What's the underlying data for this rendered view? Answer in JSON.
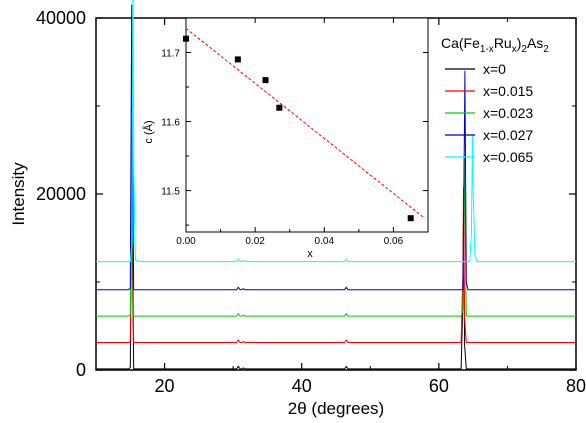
{
  "chart_data": [
    {
      "type": "line",
      "xlabel": "2θ (degrees)",
      "ylabel": "Intensity",
      "xlim": [
        10,
        80
      ],
      "ylim": [
        0,
        40000
      ],
      "xticks": [
        "20",
        "40",
        "60",
        "80"
      ],
      "yticks": [
        "0",
        "20000",
        "40000"
      ],
      "legend_title_parts": {
        "prefix": "Ca(Fe",
        "sub1": "1-x",
        "mid": "Ru",
        "sub2": "x",
        "close": ")",
        "sub3": "2",
        "suffix": "As",
        "sub4": "2"
      },
      "legend_position": "top-right",
      "series": [
        {
          "name": "x=0",
          "color": "#000000",
          "offset": 0,
          "peak1_x": 15.2,
          "peak1_h": 22500,
          "peak2_x": 63.6,
          "peak2_h": 17500
        },
        {
          "name": "x=0.015",
          "color": "#ff0000",
          "offset": 3000,
          "peak1_x": 15.2,
          "peak1_h": 22000,
          "peak2_x": 63.6,
          "peak2_h": 17800
        },
        {
          "name": "x=0.023",
          "color": "#00cc00",
          "offset": 6000,
          "peak1_x": 15.2,
          "peak1_h": 22500,
          "peak2_x": 63.7,
          "peak2_h": 18500
        },
        {
          "name": "x=0.027",
          "color": "#0000cc",
          "offset": 9000,
          "peak1_x": 15.2,
          "peak1_h": 32500,
          "peak2_x": 63.8,
          "peak2_h": 25000
        },
        {
          "name": "x=0.065",
          "color": "#00ffff",
          "offset": 12200,
          "peak1_x": 15.4,
          "peak1_h": 35300,
          "peak2_x": 64.9,
          "peak2_h": 14500
        }
      ]
    },
    {
      "type": "scatter",
      "xlabel": "x",
      "ylabel": "c (Å)",
      "xlim": [
        0,
        0.07
      ],
      "ylim": [
        11.44,
        11.75
      ],
      "xticks": [
        "0.00",
        "0.02",
        "0.04",
        "0.06"
      ],
      "yticks": [
        "11.5",
        "11.6",
        "11.7"
      ],
      "points": [
        {
          "x": 0.0,
          "y": 11.72
        },
        {
          "x": 0.015,
          "y": 11.69
        },
        {
          "x": 0.023,
          "y": 11.66
        },
        {
          "x": 0.027,
          "y": 11.62
        },
        {
          "x": 0.065,
          "y": 11.46
        }
      ],
      "fit_line": {
        "x": [
          0.0,
          0.069
        ],
        "y": [
          11.735,
          11.46
        ],
        "color": "#ff0000",
        "dashed": true
      }
    }
  ]
}
